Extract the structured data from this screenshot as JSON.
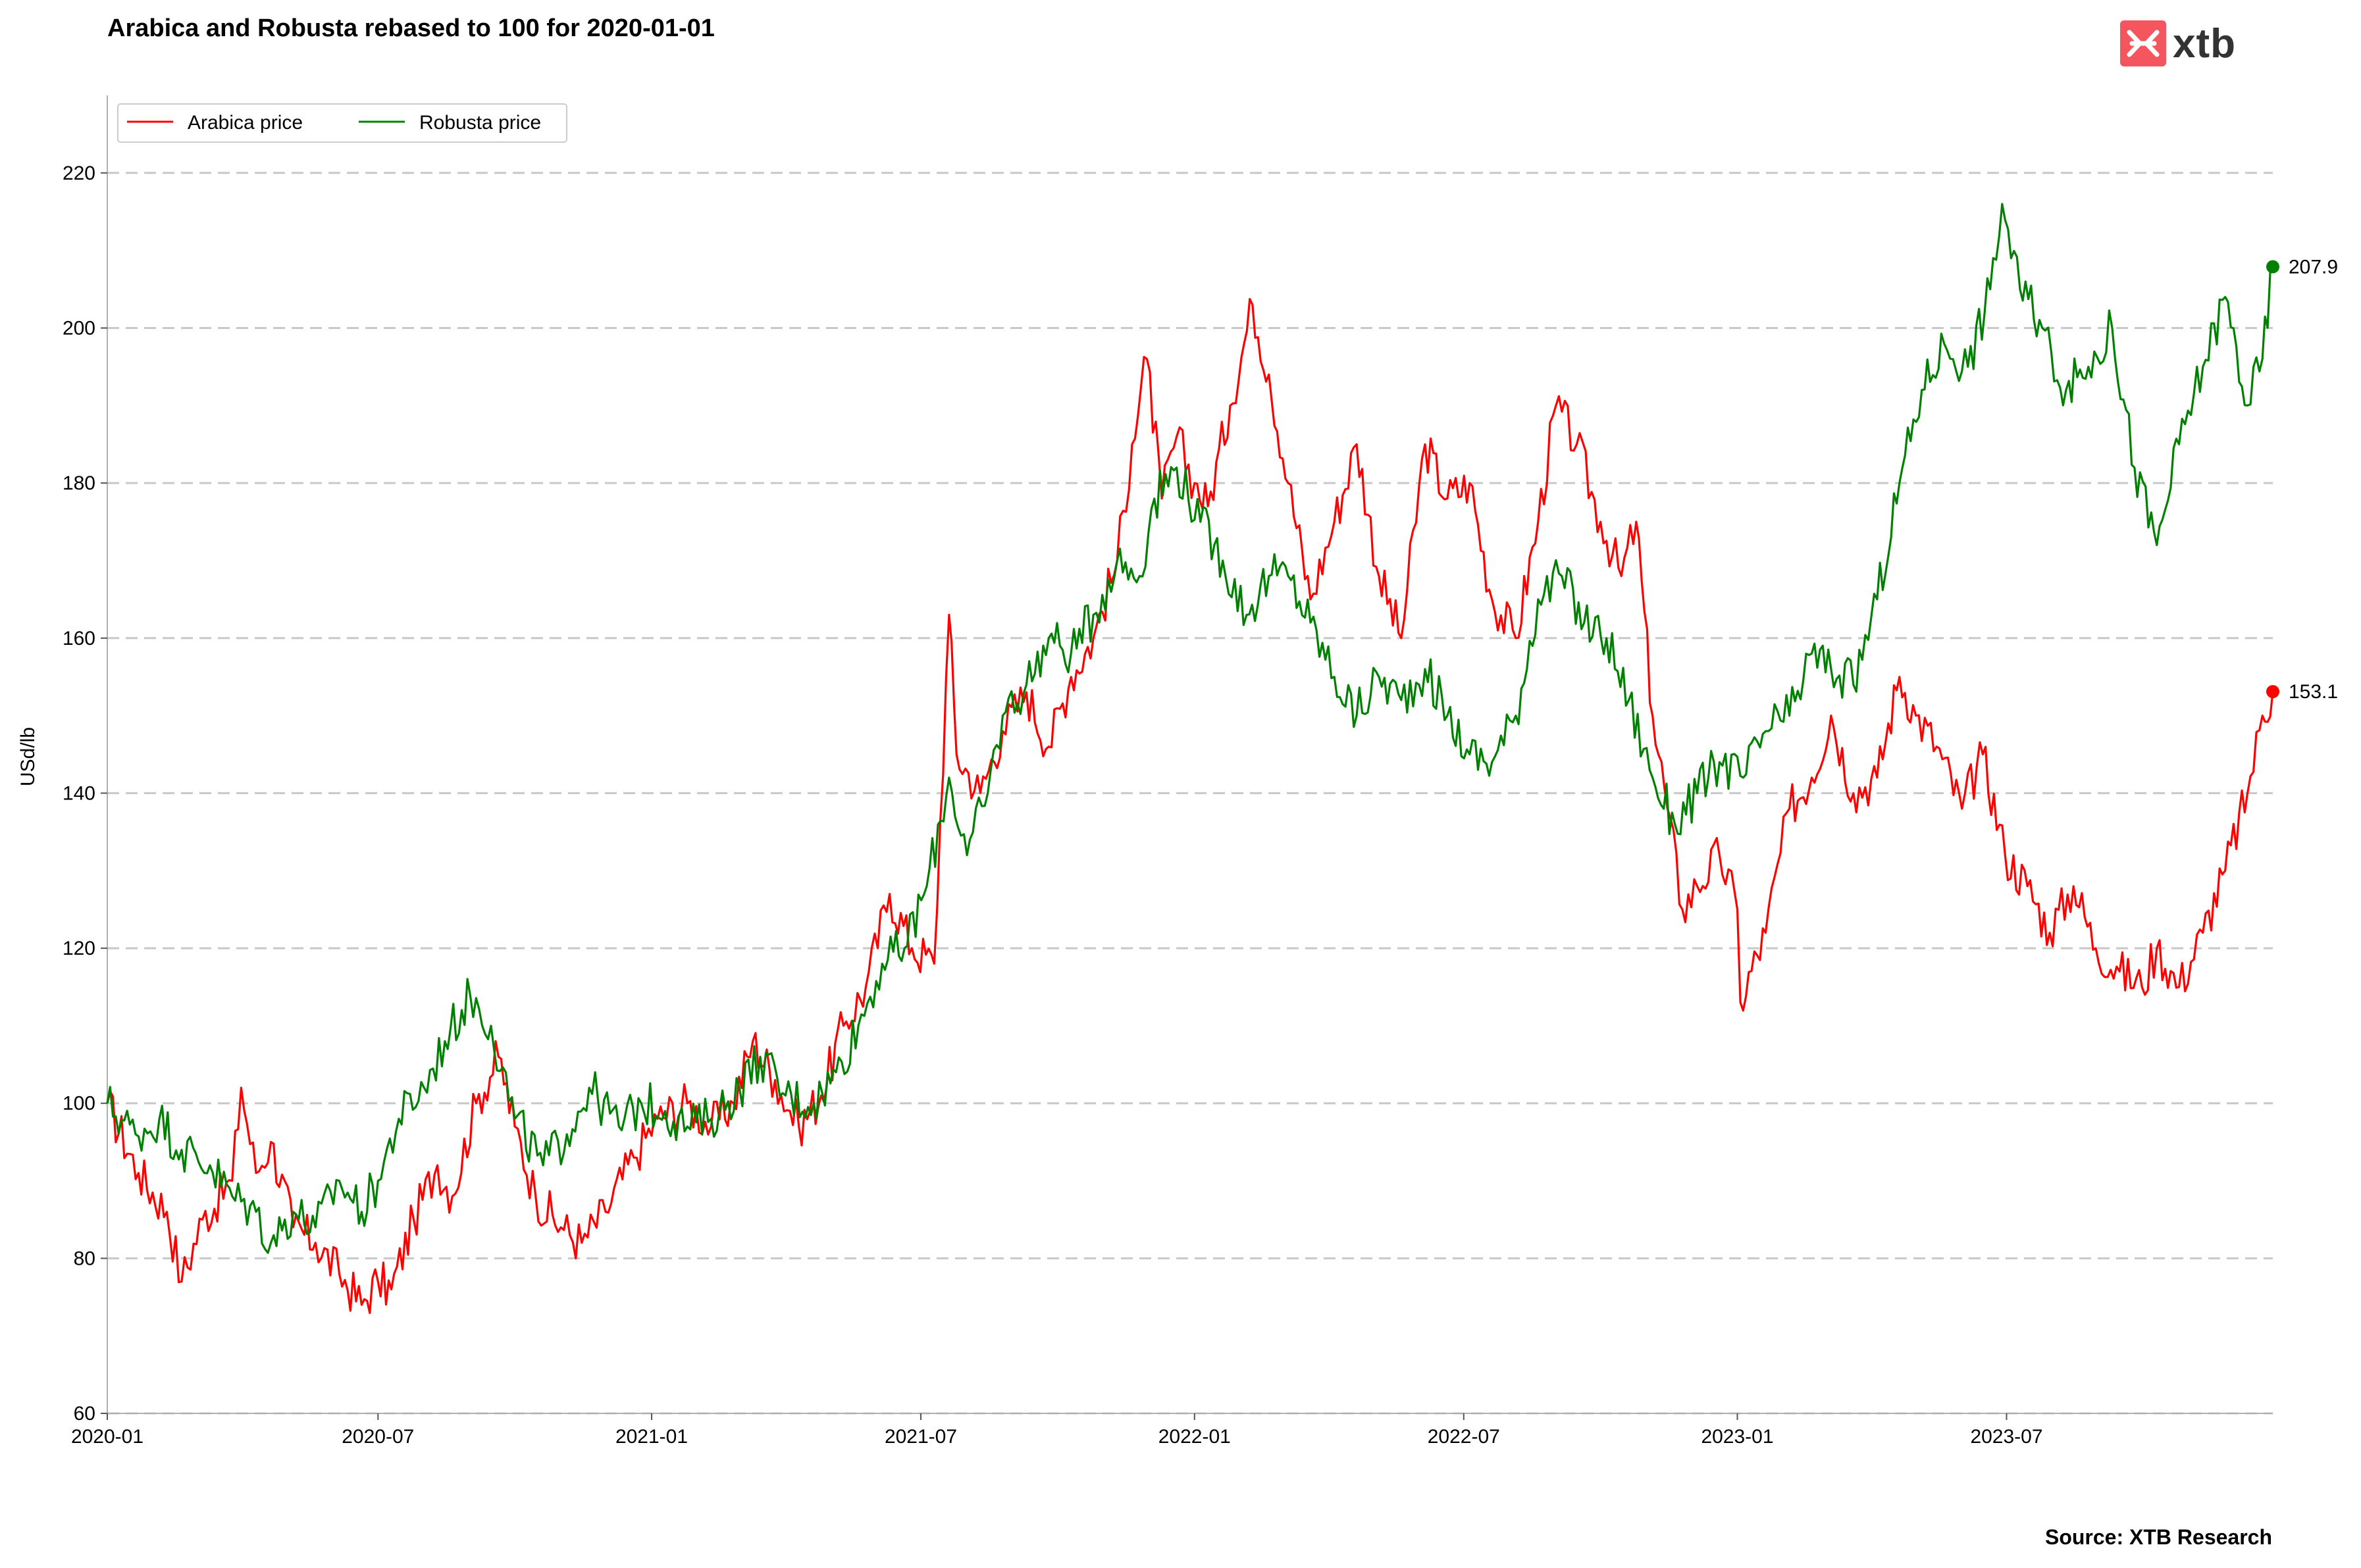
{
  "header": {
    "title": "Arabica and Robusta rebased to 100 for 2020-01-01"
  },
  "brand": {
    "name": "xtb",
    "accent": "#f4555f",
    "icon": "xtb-logo-icon"
  },
  "footer": {
    "source": "Source: XTB Research"
  },
  "chart_data": {
    "type": "line",
    "title": "Arabica and Robusta rebased to 100 for 2020-01-01",
    "xlabel": "",
    "ylabel": "USd/lb",
    "xlim": [
      "2020-01-01",
      "2023-12-27"
    ],
    "ylim": [
      60,
      230
    ],
    "yticks": [
      60,
      80,
      100,
      120,
      140,
      160,
      180,
      200,
      220
    ],
    "xticks": [
      "2020-01",
      "2020-07",
      "2021-01",
      "2021-07",
      "2022-01",
      "2022-07",
      "2023-01",
      "2023-07"
    ],
    "grid": "horizontal dashed",
    "legend": "top-left",
    "series": [
      {
        "name": "Arabica price",
        "color": "#ff0000",
        "end_label": "153.1",
        "points": [
          [
            "2020-01-01",
            100
          ],
          [
            "2020-01-22",
            91
          ],
          [
            "2020-02-10",
            86
          ],
          [
            "2020-02-20",
            77
          ],
          [
            "2020-03-05",
            85
          ],
          [
            "2020-03-25",
            90
          ],
          [
            "2020-03-31",
            102
          ],
          [
            "2020-04-10",
            91
          ],
          [
            "2020-04-20",
            95
          ],
          [
            "2020-05-05",
            84
          ],
          [
            "2020-05-20",
            82
          ],
          [
            "2020-06-05",
            78
          ],
          [
            "2020-06-20",
            74
          ],
          [
            "2020-07-01",
            77
          ],
          [
            "2020-07-10",
            76
          ],
          [
            "2020-07-25",
            85
          ],
          [
            "2020-08-10",
            92
          ],
          [
            "2020-08-20",
            88
          ],
          [
            "2020-09-05",
            100
          ],
          [
            "2020-09-20",
            106
          ],
          [
            "2020-10-01",
            97
          ],
          [
            "2020-10-15",
            88
          ],
          [
            "2020-11-01",
            84
          ],
          [
            "2020-11-15",
            82
          ],
          [
            "2020-12-01",
            86
          ],
          [
            "2020-12-20",
            93
          ],
          [
            "2021-01-05",
            98
          ],
          [
            "2021-01-25",
            100
          ],
          [
            "2021-02-10",
            97
          ],
          [
            "2021-02-25",
            100
          ],
          [
            "2021-03-10",
            108
          ],
          [
            "2021-03-25",
            103
          ],
          [
            "2021-04-10",
            97
          ],
          [
            "2021-04-25",
            101
          ],
          [
            "2021-05-10",
            110
          ],
          [
            "2021-05-25",
            115
          ],
          [
            "2021-06-10",
            127
          ],
          [
            "2021-06-25",
            120
          ],
          [
            "2021-07-10",
            118
          ],
          [
            "2021-07-20",
            163
          ],
          [
            "2021-07-25",
            145
          ],
          [
            "2021-08-10",
            140
          ],
          [
            "2021-08-25",
            148
          ],
          [
            "2021-09-10",
            153
          ],
          [
            "2021-09-25",
            146
          ],
          [
            "2021-10-10",
            155
          ],
          [
            "2021-10-25",
            160
          ],
          [
            "2021-11-10",
            170
          ],
          [
            "2021-11-20",
            185
          ],
          [
            "2021-11-30",
            196
          ],
          [
            "2021-12-10",
            178
          ],
          [
            "2021-12-20",
            186
          ],
          [
            "2022-01-01",
            180
          ],
          [
            "2022-01-10",
            177
          ],
          [
            "2022-01-25",
            190
          ],
          [
            "2022-02-09",
            203
          ],
          [
            "2022-02-20",
            194
          ],
          [
            "2022-03-05",
            180
          ],
          [
            "2022-03-20",
            165
          ],
          [
            "2022-04-05",
            175
          ],
          [
            "2022-04-20",
            185
          ],
          [
            "2022-05-05",
            168
          ],
          [
            "2022-05-20",
            160
          ],
          [
            "2022-06-05",
            185
          ],
          [
            "2022-06-20",
            178
          ],
          [
            "2022-07-05",
            180
          ],
          [
            "2022-07-20",
            165
          ],
          [
            "2022-08-05",
            160
          ],
          [
            "2022-08-20",
            175
          ],
          [
            "2022-09-01",
            190
          ],
          [
            "2022-09-15",
            185
          ],
          [
            "2022-10-01",
            175
          ],
          [
            "2022-10-15",
            168
          ],
          [
            "2022-10-25",
            175
          ],
          [
            "2022-11-05",
            150
          ],
          [
            "2022-11-15",
            138
          ],
          [
            "2022-11-25",
            125
          ],
          [
            "2022-12-05",
            128
          ],
          [
            "2022-12-20",
            132
          ],
          [
            "2023-01-01",
            125
          ],
          [
            "2023-01-03",
            113
          ],
          [
            "2023-01-20",
            122
          ],
          [
            "2023-02-05",
            138
          ],
          [
            "2023-02-20",
            142
          ],
          [
            "2023-03-05",
            150
          ],
          [
            "2023-03-20",
            140
          ],
          [
            "2023-04-05",
            142
          ],
          [
            "2023-04-20",
            155
          ],
          [
            "2023-05-01",
            150
          ],
          [
            "2023-05-15",
            146
          ],
          [
            "2023-06-01",
            138
          ],
          [
            "2023-06-15",
            145
          ],
          [
            "2023-06-30",
            132
          ],
          [
            "2023-07-15",
            128
          ],
          [
            "2023-07-30",
            122
          ],
          [
            "2023-08-15",
            128
          ],
          [
            "2023-08-30",
            120
          ],
          [
            "2023-09-15",
            117
          ],
          [
            "2023-09-30",
            115
          ],
          [
            "2023-10-10",
            120
          ],
          [
            "2023-10-25",
            115
          ],
          [
            "2023-11-10",
            122
          ],
          [
            "2023-11-25",
            130
          ],
          [
            "2023-12-10",
            140
          ],
          [
            "2023-12-20",
            150
          ],
          [
            "2023-12-27",
            153.1
          ]
        ]
      },
      {
        "name": "Robusta price",
        "color": "#008000",
        "end_label": "207.9",
        "points": [
          [
            "2020-01-01",
            100
          ],
          [
            "2020-01-20",
            96
          ],
          [
            "2020-02-05",
            98
          ],
          [
            "2020-02-20",
            94
          ],
          [
            "2020-03-10",
            92
          ],
          [
            "2020-03-25",
            88
          ],
          [
            "2020-04-10",
            86
          ],
          [
            "2020-04-20",
            82
          ],
          [
            "2020-05-05",
            86
          ],
          [
            "2020-05-20",
            84
          ],
          [
            "2020-06-05",
            90
          ],
          [
            "2020-06-20",
            86
          ],
          [
            "2020-07-01",
            90
          ],
          [
            "2020-07-15",
            98
          ],
          [
            "2020-08-01",
            102
          ],
          [
            "2020-08-15",
            108
          ],
          [
            "2020-09-01",
            114
          ],
          [
            "2020-09-15",
            110
          ],
          [
            "2020-10-01",
            98
          ],
          [
            "2020-10-20",
            92
          ],
          [
            "2020-11-05",
            96
          ],
          [
            "2020-11-20",
            102
          ],
          [
            "2020-12-10",
            97
          ],
          [
            "2020-12-25",
            100
          ],
          [
            "2021-01-10",
            99
          ],
          [
            "2021-01-25",
            97
          ],
          [
            "2021-02-10",
            98
          ],
          [
            "2021-03-01",
            102
          ],
          [
            "2021-03-15",
            106
          ],
          [
            "2021-04-01",
            101
          ],
          [
            "2021-04-20",
            100
          ],
          [
            "2021-05-05",
            104
          ],
          [
            "2021-05-20",
            110
          ],
          [
            "2021-06-05",
            118
          ],
          [
            "2021-06-20",
            120
          ],
          [
            "2021-07-05",
            128
          ],
          [
            "2021-07-20",
            142
          ],
          [
            "2021-08-01",
            132
          ],
          [
            "2021-08-15",
            140
          ],
          [
            "2021-08-25",
            150
          ],
          [
            "2021-09-10",
            154
          ],
          [
            "2021-09-25",
            160
          ],
          [
            "2021-10-10",
            158
          ],
          [
            "2021-10-25",
            163
          ],
          [
            "2021-11-10",
            170
          ],
          [
            "2021-11-25",
            168
          ],
          [
            "2021-12-05",
            178
          ],
          [
            "2021-12-20",
            182
          ],
          [
            "2022-01-05",
            175
          ],
          [
            "2022-01-20",
            170
          ],
          [
            "2022-02-05",
            163
          ],
          [
            "2022-02-20",
            168
          ],
          [
            "2022-03-05",
            168
          ],
          [
            "2022-03-20",
            162
          ],
          [
            "2022-04-05",
            155
          ],
          [
            "2022-04-20",
            150
          ],
          [
            "2022-05-05",
            155
          ],
          [
            "2022-05-20",
            152
          ],
          [
            "2022-06-05",
            156
          ],
          [
            "2022-06-20",
            150
          ],
          [
            "2022-07-05",
            145
          ],
          [
            "2022-07-20",
            144
          ],
          [
            "2022-08-05",
            150
          ],
          [
            "2022-08-20",
            165
          ],
          [
            "2022-09-05",
            168
          ],
          [
            "2022-09-20",
            162
          ],
          [
            "2022-10-05",
            160
          ],
          [
            "2022-10-20",
            152
          ],
          [
            "2022-11-05",
            142
          ],
          [
            "2022-11-20",
            136
          ],
          [
            "2022-12-05",
            140
          ],
          [
            "2022-12-20",
            144
          ],
          [
            "2023-01-05",
            142
          ],
          [
            "2023-01-20",
            148
          ],
          [
            "2023-02-05",
            150
          ],
          [
            "2023-02-20",
            158
          ],
          [
            "2023-03-05",
            156
          ],
          [
            "2023-03-20",
            154
          ],
          [
            "2023-04-05",
            165
          ],
          [
            "2023-04-20",
            180
          ],
          [
            "2023-05-05",
            192
          ],
          [
            "2023-05-20",
            198
          ],
          [
            "2023-06-05",
            195
          ],
          [
            "2023-06-20",
            205
          ],
          [
            "2023-06-28",
            216
          ],
          [
            "2023-07-10",
            205
          ],
          [
            "2023-07-25",
            200
          ],
          [
            "2023-08-10",
            192
          ],
          [
            "2023-08-25",
            195
          ],
          [
            "2023-09-10",
            200
          ],
          [
            "2023-09-25",
            182
          ],
          [
            "2023-10-10",
            172
          ],
          [
            "2023-10-25",
            185
          ],
          [
            "2023-11-10",
            195
          ],
          [
            "2023-11-25",
            204
          ],
          [
            "2023-12-10",
            190
          ],
          [
            "2023-12-20",
            196
          ],
          [
            "2023-12-27",
            207.9
          ]
        ]
      }
    ]
  }
}
